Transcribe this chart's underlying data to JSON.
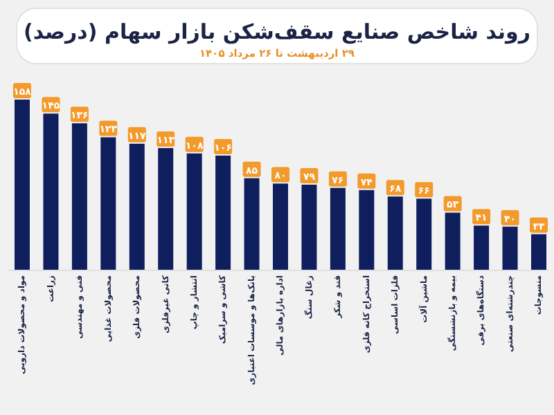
{
  "chart_data": {
    "type": "bar",
    "title": "روند شاخص صنایع سقف‌شکن بازار سهام (درصد)",
    "subtitle": "۲۹ اردیبهشت تا ۲۶ مرداد ۱۴۰۵",
    "categories": [
      "مواد و محصولات دارویی",
      "زراعت",
      "فنی و مهندسی",
      "محصولات غذایی",
      "محصولات فلزی",
      "کانی غیرفلزی",
      "انتشار و چاپ",
      "کاشی و سرامیک",
      "بانک‌ها و موسسات اعتباری",
      "اداره بازارهای مالی",
      "زغال سنگ",
      "قند و شکر",
      "استخراج کانه فلزی",
      "فلزات اساسی",
      "ماشین آلات",
      "بیمه و بازنشستگی",
      "دستگاه‌های برقی",
      "چندرشته‌ای صنعتی",
      "منسوجات"
    ],
    "values": [
      158,
      145,
      136,
      123,
      117,
      113,
      108,
      106,
      85,
      80,
      79,
      76,
      74,
      68,
      66,
      53,
      41,
      40,
      33
    ],
    "value_labels": [
      "۱۵۸",
      "۱۴۵",
      "۱۳۶",
      "۱۲۳",
      "۱۱۷",
      "۱۱۳",
      "۱۰۸",
      "۱۰۶",
      "۸۵",
      "۸۰",
      "۷۹",
      "۷۶",
      "۷۴",
      "۶۸",
      "۶۶",
      "۵۳",
      "۴۱",
      "۴۰",
      "۳۳"
    ],
    "color": "#0f1f5e"
  }
}
